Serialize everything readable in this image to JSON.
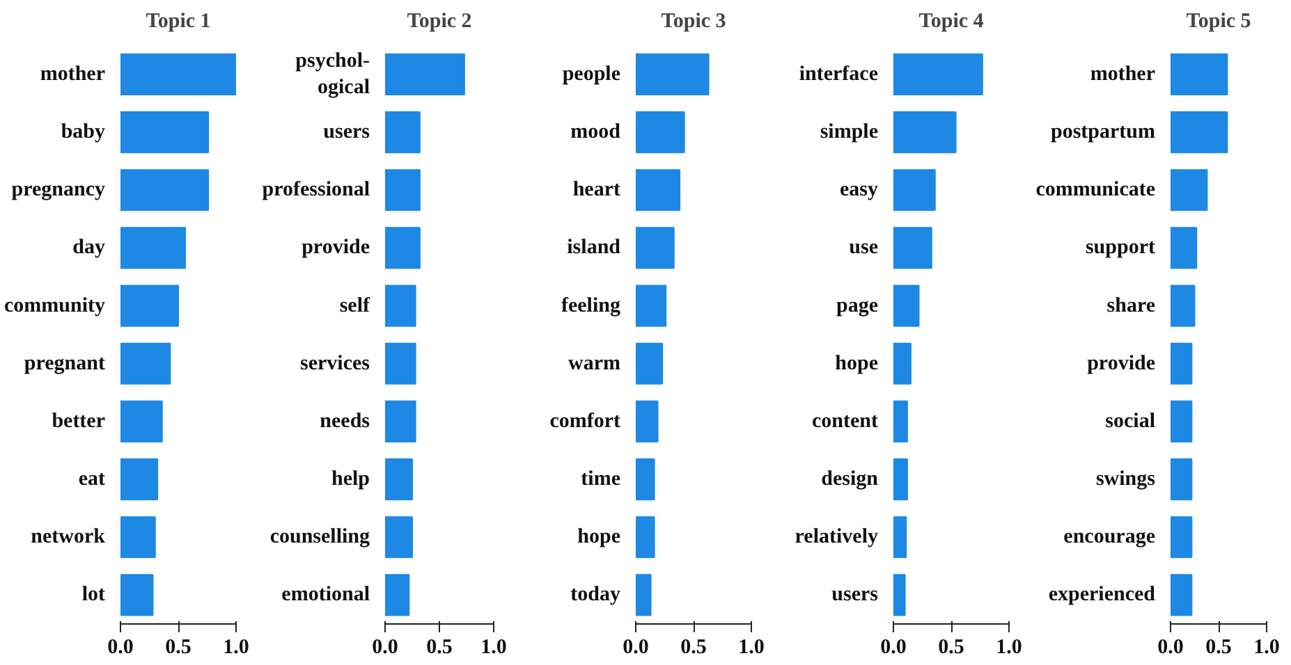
{
  "chart_data": [
    {
      "type": "bar",
      "orientation": "horizontal",
      "title": "Topic 1",
      "categories": [
        "mother",
        "baby",
        "pregnancy",
        "day",
        "community",
        "pregnant",
        "better",
        "eat",
        "network",
        "lot"
      ],
      "values": [
        1.0,
        0.76,
        0.76,
        0.56,
        0.5,
        0.43,
        0.36,
        0.32,
        0.3,
        0.28
      ],
      "color": "#1e88e5",
      "xlim": [
        0,
        1
      ],
      "xticks": [
        {
          "value": 0,
          "label": "0.0"
        },
        {
          "value": 0.5,
          "label": "0.5"
        },
        {
          "value": 1,
          "label": "1.0"
        }
      ]
    },
    {
      "type": "bar",
      "orientation": "horizontal",
      "title": "Topic 2",
      "categories": [
        "psychol-\nogical",
        "users",
        "professional",
        "provide",
        "self",
        "services",
        "needs",
        "help",
        "counselling",
        "emotional"
      ],
      "values": [
        0.73,
        0.32,
        0.32,
        0.32,
        0.28,
        0.28,
        0.28,
        0.25,
        0.25,
        0.22
      ],
      "color": "#1e88e5",
      "xlim": [
        0,
        1
      ],
      "xticks": [
        {
          "value": 0,
          "label": "0.0"
        },
        {
          "value": 0.5,
          "label": "0.5"
        },
        {
          "value": 1,
          "label": "1.0"
        }
      ]
    },
    {
      "type": "bar",
      "orientation": "horizontal",
      "title": "Topic 3",
      "categories": [
        "people",
        "mood",
        "heart",
        "island",
        "feeling",
        "warm",
        "comfort",
        "time",
        "hope",
        "today"
      ],
      "values": [
        0.63,
        0.42,
        0.38,
        0.33,
        0.26,
        0.23,
        0.19,
        0.16,
        0.16,
        0.13
      ],
      "color": "#1e88e5",
      "xlim": [
        0,
        1
      ],
      "xticks": [
        {
          "value": 0,
          "label": "0.0"
        },
        {
          "value": 0.5,
          "label": "0.5"
        },
        {
          "value": 1,
          "label": "1.0"
        }
      ]
    },
    {
      "type": "bar",
      "orientation": "horizontal",
      "title": "Topic 4",
      "categories": [
        "interface",
        "simple",
        "easy",
        "use",
        "page",
        "hope",
        "content",
        "design",
        "relatively",
        "users"
      ],
      "values": [
        0.77,
        0.54,
        0.36,
        0.33,
        0.22,
        0.15,
        0.12,
        0.12,
        0.11,
        0.1
      ],
      "color": "#1e88e5",
      "xlim": [
        0,
        1
      ],
      "xticks": [
        {
          "value": 0,
          "label": "0.0"
        },
        {
          "value": 0.5,
          "label": "0.5"
        },
        {
          "value": 1,
          "label": "1.0"
        }
      ]
    },
    {
      "type": "bar",
      "orientation": "horizontal",
      "title": "Topic 5",
      "categories": [
        "mother",
        "postpartum",
        "communicate",
        "support",
        "share",
        "provide",
        "social",
        "swings",
        "encourage",
        "experienced"
      ],
      "values": [
        0.59,
        0.59,
        0.38,
        0.27,
        0.25,
        0.22,
        0.22,
        0.22,
        0.22,
        0.22
      ],
      "color": "#1e88e5",
      "xlim": [
        0,
        1
      ],
      "xticks": [
        {
          "value": 0,
          "label": "0.0"
        },
        {
          "value": 0.5,
          "label": "0.5"
        },
        {
          "value": 1,
          "label": "1.0"
        }
      ]
    }
  ]
}
